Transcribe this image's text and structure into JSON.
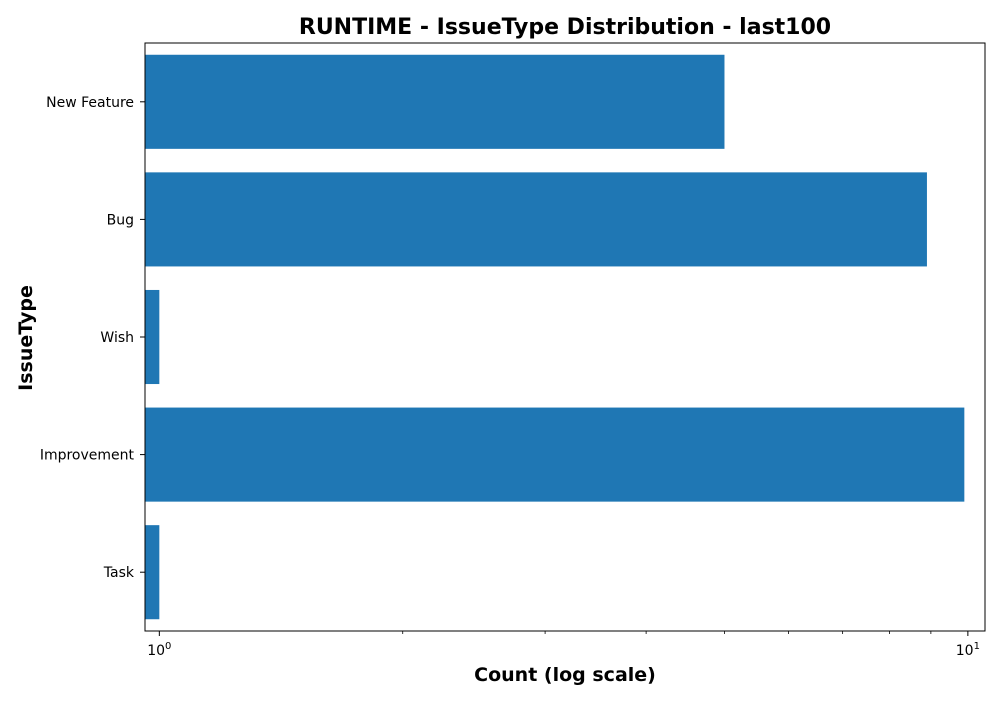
{
  "chart_data": {
    "type": "bar",
    "orientation": "horizontal",
    "title": "RUNTIME - IssueType Distribution - last100",
    "xlabel": "Count (log scale)",
    "ylabel": "IssueType",
    "x_scale": "log",
    "xlim": [
      0.96,
      10.5
    ],
    "categories": [
      "New Feature",
      "Bug",
      "Wish",
      "Improvement",
      "Task"
    ],
    "values": [
      5,
      8.9,
      1,
      9.9,
      1
    ],
    "x_tick_labels": [
      {
        "value": 1,
        "base": "10",
        "exp": "0"
      },
      {
        "value": 10,
        "base": "10",
        "exp": "1"
      }
    ],
    "bar_color": "#1f77b4",
    "grid": false,
    "legend": "none"
  }
}
